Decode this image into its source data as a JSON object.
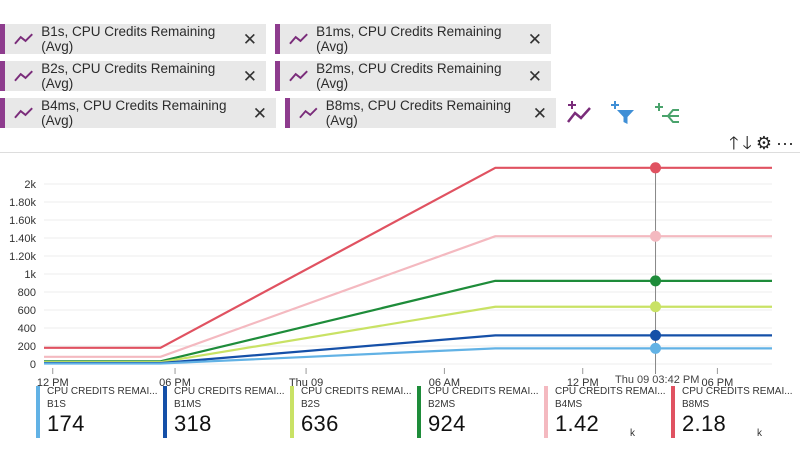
{
  "pills": [
    {
      "label": "B1s, CPU Credits Remaining (Avg)"
    },
    {
      "label": "B1ms, CPU Credits Remaining (Avg)"
    },
    {
      "label": "B2s, CPU Credits Remaining (Avg)"
    },
    {
      "label": "B2ms, CPU Credits Remaining (Avg)"
    },
    {
      "label": "B4ms, CPU Credits Remaining (Avg)"
    },
    {
      "label": "B8ms, CPU Credits Remaining (Avg)"
    }
  ],
  "pill_close_glyph": "✕",
  "tools": [
    "add-metric-icon",
    "add-filter-icon",
    "apply-splitting-icon"
  ],
  "toolbar_right": {
    "up": "🡑",
    "down": "🡓",
    "gear": "⚙",
    "more": "···"
  },
  "tooltip_time": "Thu 09 03:42 PM",
  "chart_data": {
    "type": "line",
    "x": [
      "12 PM",
      "06 PM",
      "Thu 09",
      "06 AM",
      "12 PM",
      "06 PM"
    ],
    "y_ticks": [
      "0",
      "200",
      "400",
      "600",
      "800",
      "1k",
      "1.20k",
      "1.40k",
      "1.60k",
      "1.80k",
      "2k"
    ],
    "ylim": [
      0,
      2200
    ],
    "grid": true,
    "series": [
      {
        "name": "B8MS",
        "color": "#e05261",
        "points": [
          [
            0,
            180
          ],
          [
            0.16,
            180
          ],
          [
            0.62,
            2180
          ],
          [
            1,
            2180
          ]
        ]
      },
      {
        "name": "B4MS",
        "color": "#f4b9c0",
        "points": [
          [
            0,
            80
          ],
          [
            0.16,
            80
          ],
          [
            0.62,
            1420
          ],
          [
            1,
            1420
          ]
        ]
      },
      {
        "name": "B2MS",
        "color": "#1e8c3a",
        "points": [
          [
            0,
            30
          ],
          [
            0.16,
            30
          ],
          [
            0.62,
            924
          ],
          [
            1,
            924
          ]
        ]
      },
      {
        "name": "B2S",
        "color": "#c9e265",
        "points": [
          [
            0,
            20
          ],
          [
            0.16,
            20
          ],
          [
            0.62,
            636
          ],
          [
            1,
            636
          ]
        ]
      },
      {
        "name": "B1MS",
        "color": "#1550a8",
        "points": [
          [
            0,
            10
          ],
          [
            0.16,
            10
          ],
          [
            0.62,
            318
          ],
          [
            1,
            318
          ]
        ]
      },
      {
        "name": "B1S",
        "color": "#62b2e5",
        "points": [
          [
            0,
            5
          ],
          [
            0.16,
            5
          ],
          [
            0.62,
            174
          ],
          [
            1,
            174
          ]
        ]
      }
    ]
  },
  "legend": [
    {
      "title": "CPU CREDITS REMAI...",
      "sub": "B1S",
      "value": "174",
      "unit": "",
      "color": "#62b2e5"
    },
    {
      "title": "CPU CREDITS REMAI...",
      "sub": "B1MS",
      "value": "318",
      "unit": "",
      "color": "#1550a8"
    },
    {
      "title": "CPU CREDITS REMAI...",
      "sub": "B2S",
      "value": "636",
      "unit": "",
      "color": "#c9e265"
    },
    {
      "title": "CPU CREDITS REMAI...",
      "sub": "B2MS",
      "value": "924",
      "unit": "",
      "color": "#1e8c3a"
    },
    {
      "title": "CPU CREDITS REMAI...",
      "sub": "B4MS",
      "value": "1.42",
      "unit": "k",
      "color": "#f4b9c0"
    },
    {
      "title": "CPU CREDITS REMAI...",
      "sub": "B8MS",
      "value": "2.18",
      "unit": "k",
      "color": "#e05261"
    }
  ]
}
